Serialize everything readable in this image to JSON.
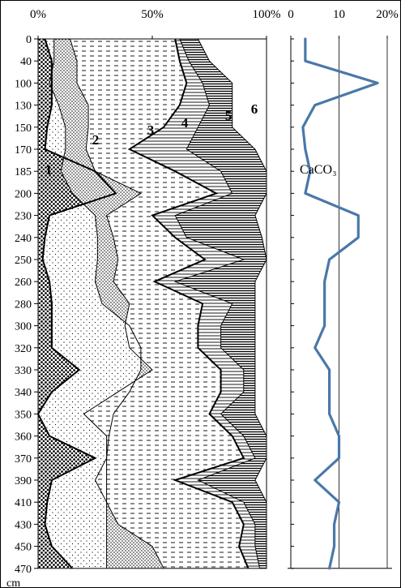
{
  "chart_data": [
    {
      "type": "area",
      "subtype": "stacked-percent",
      "x_unit_label": "cm",
      "x_ticks": [
        "0%",
        "50%",
        "100%"
      ],
      "xlim": [
        0,
        100
      ],
      "depths": [
        0,
        40,
        100,
        130,
        150,
        170,
        185,
        200,
        230,
        240,
        250,
        260,
        280,
        300,
        320,
        330,
        340,
        350,
        360,
        370,
        390,
        410,
        430,
        450,
        470
      ],
      "depth_labels": [
        "0",
        "40",
        "100",
        "130",
        "150",
        "170",
        "185",
        "200",
        "230",
        "240",
        "250",
        "260",
        "280",
        "300",
        "320",
        "330",
        "340",
        "350",
        "360",
        "370",
        "390",
        "410",
        "430",
        "450",
        "470"
      ],
      "boundaries_cumulative_pct": [
        {
          "name": "1",
          "values": [
            3,
            6,
            6,
            6,
            4,
            3,
            25,
            34,
            5,
            3,
            2,
            5,
            6,
            6,
            6,
            18,
            6,
            0,
            5,
            25,
            6,
            4,
            3,
            6,
            15
          ]
        },
        {
          "name": "2",
          "values": [
            7,
            7,
            5,
            9,
            12,
            12,
            10,
            15,
            25,
            26,
            26,
            25,
            28,
            40,
            45,
            45,
            40,
            33,
            31,
            30,
            30,
            30,
            30,
            30,
            30
          ]
        },
        {
          "name": "3",
          "values": [
            14,
            17,
            17,
            22,
            22,
            21,
            25,
            45,
            30,
            33,
            35,
            33,
            40,
            38,
            40,
            50,
            35,
            20,
            30,
            30,
            25,
            30,
            35,
            50,
            55
          ]
        },
        {
          "name": "4",
          "values": [
            60,
            62,
            65,
            62,
            55,
            40,
            60,
            78,
            50,
            60,
            73,
            51,
            72,
            70,
            70,
            80,
            80,
            75,
            85,
            90,
            60,
            85,
            90,
            88,
            92
          ]
        },
        {
          "name": "5",
          "values": [
            62,
            66,
            72,
            75,
            70,
            65,
            80,
            85,
            60,
            65,
            90,
            60,
            85,
            80,
            80,
            90,
            90,
            80,
            90,
            95,
            70,
            90,
            95,
            95,
            97
          ]
        },
        {
          "name": "6",
          "values": [
            70,
            75,
            85,
            85,
            85,
            95,
            100,
            100,
            95,
            98,
            100,
            95,
            95,
            95,
            95,
            95,
            95,
            95,
            100,
            100,
            95,
            100,
            100,
            100,
            100
          ]
        }
      ],
      "zone_labels": [
        "1",
        "2",
        "3",
        "4",
        "5",
        "6"
      ]
    },
    {
      "type": "line",
      "x_ticks": [
        "0",
        "10",
        "20%"
      ],
      "xlim": [
        0,
        20
      ],
      "series": [
        {
          "name": "CaCO3",
          "values": [
            3,
            3,
            18,
            5,
            2.5,
            3,
            4,
            3,
            14,
            14,
            8,
            7,
            7,
            7,
            5,
            8,
            8,
            8,
            10,
            10,
            5,
            10,
            9,
            9,
            8
          ]
        }
      ],
      "label": "CaCO₃",
      "color": "#4A78A9"
    }
  ]
}
